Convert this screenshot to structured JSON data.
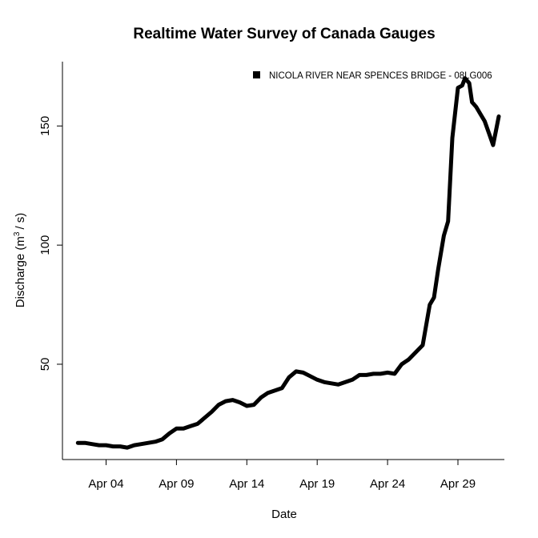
{
  "chart_data": {
    "type": "line",
    "title": "Realtime Water Survey of Canada Gauges",
    "xlabel": "Date",
    "ylabel_main": "Discharge (m",
    "ylabel_sup": "3",
    "ylabel_tail": "/ s)",
    "x_tick_labels": [
      "Apr 04",
      "Apr 09",
      "Apr 14",
      "Apr 19",
      "Apr 24",
      "Apr 29"
    ],
    "x_tick_days": [
      4,
      9,
      14,
      19,
      24,
      29
    ],
    "y_ticks": [
      50,
      100,
      150
    ],
    "xlim_days": [
      0.9,
      32.3
    ],
    "ylim": [
      10,
      177
    ],
    "grid": false,
    "legend_position": "top-right",
    "series_color": "#000000",
    "series": [
      {
        "name": "NICOLA RIVER NEAR SPENCES BRIDGE - 08LG006",
        "x_days": [
          2.0,
          2.5,
          3.0,
          3.5,
          4.0,
          4.5,
          5.0,
          5.5,
          6.0,
          6.5,
          7.0,
          7.5,
          8.0,
          8.5,
          9.0,
          9.5,
          10.0,
          10.5,
          11.0,
          11.5,
          12.0,
          12.5,
          13.0,
          13.5,
          14.0,
          14.5,
          15.0,
          15.5,
          16.0,
          16.5,
          17.0,
          17.5,
          18.0,
          18.5,
          19.0,
          19.5,
          20.0,
          20.5,
          21.0,
          21.5,
          22.0,
          22.5,
          23.0,
          23.5,
          24.0,
          24.5,
          25.0,
          25.5,
          26.0,
          26.5,
          27.0,
          27.3,
          27.6,
          28.0,
          28.3,
          28.6,
          29.0,
          29.3,
          29.5,
          29.8,
          30.0,
          30.3,
          30.6,
          30.9,
          31.2,
          31.5,
          31.7,
          31.9
        ],
        "values": [
          17,
          17,
          16.5,
          16,
          16,
          15.5,
          15.5,
          15,
          16,
          16.5,
          17,
          17.5,
          18.5,
          21,
          23,
          23,
          24,
          25,
          27.5,
          30,
          33,
          34.5,
          35,
          34,
          32.5,
          33,
          36,
          38,
          39,
          40,
          44.5,
          47,
          46.5,
          45,
          43.5,
          42.5,
          42,
          41.5,
          42.5,
          43.5,
          45.5,
          45.5,
          46,
          46,
          46.5,
          46,
          50,
          52,
          55,
          58,
          75,
          78,
          90,
          104,
          110,
          145,
          166,
          167,
          170,
          168,
          160,
          158,
          155,
          152,
          147,
          142,
          148,
          154
        ]
      }
    ]
  }
}
